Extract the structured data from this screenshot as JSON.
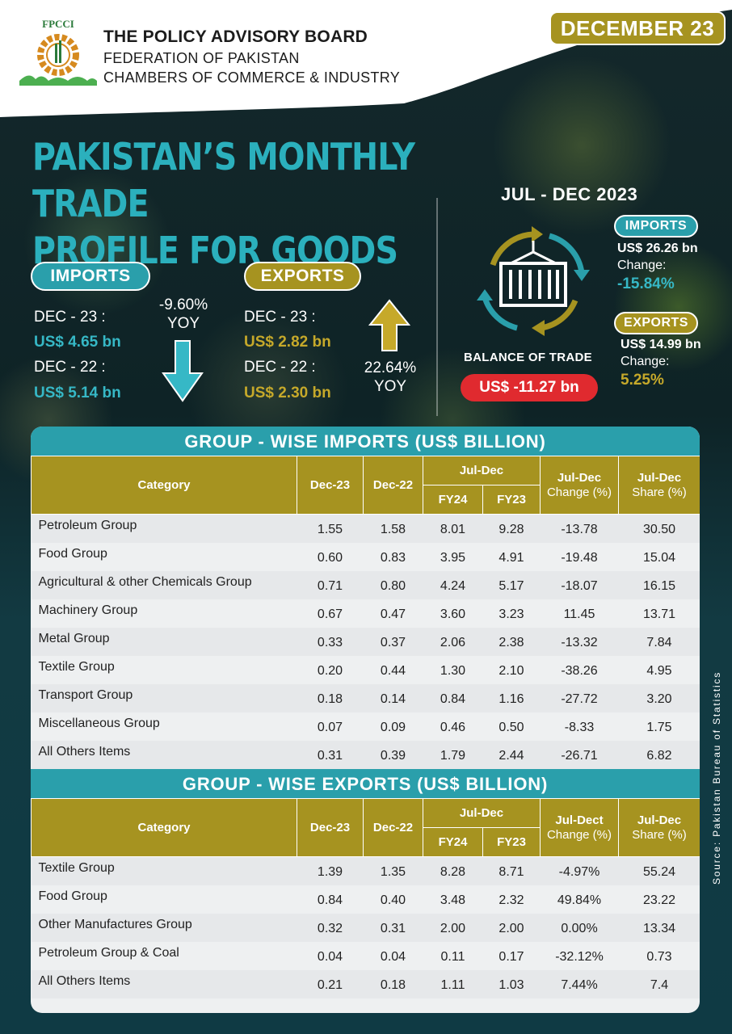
{
  "header": {
    "logo_text": "FPCCI",
    "title": "THE POLICY ADVISORY BOARD",
    "line1": "FEDERATION OF PAKISTAN",
    "line2": "CHAMBERS OF COMMERCE & INDUSTRY",
    "date_badge": "DECEMBER 23"
  },
  "main_title": {
    "line1": "PAKISTAN’S MONTHLY TRADE",
    "line2": "PROFILE FOR GOODS"
  },
  "imports_summary": {
    "label": "IMPORTS",
    "dec23_label": "DEC - 23 :",
    "dec23_value": "US$ 4.65 bn",
    "dec22_label": "DEC - 22 :",
    "dec22_value": "US$ 5.14 bn",
    "yoy_pct": "-9.60%",
    "yoy_label": "YOY",
    "trend": "down"
  },
  "exports_summary": {
    "label": "EXPORTS",
    "dec23_label": "DEC - 23 :",
    "dec23_value": "US$ 2.82 bn",
    "dec22_label": "DEC - 22 :",
    "dec22_value": "US$ 2.30 bn",
    "yoy_pct": "22.64%",
    "yoy_label": "YOY",
    "trend": "up"
  },
  "period_summary": {
    "period": "JUL - DEC  2023",
    "imports_label": "IMPORTS",
    "imports_value": "US$ 26.26 bn",
    "imports_change_label": "Change:",
    "imports_change": "-15.84%",
    "exports_label": "EXPORTS",
    "exports_value": "US$ 14.99 bn",
    "exports_change_label": "Change:",
    "exports_change": "5.25%",
    "balance_label": "BALANCE OF TRADE",
    "balance_value": "US$ -11.27 bn",
    "icon": "cargo-container-icon"
  },
  "imports_table": {
    "title": "GROUP - WISE IMPORTS (US$ BILLION)",
    "headers": {
      "category": "Category",
      "dec23": "Dec-23",
      "dec22": "Dec-22",
      "juldec": "Jul-Dec",
      "fy24": "FY24",
      "fy23": "FY23",
      "change_l1": "Jul-Dec",
      "change_l2": "Change (%)",
      "share_l1": "Jul-Dec",
      "share_l2": "Share (%)"
    },
    "rows": [
      [
        "Petroleum Group",
        "1.55",
        "1.58",
        "8.01",
        "9.28",
        "-13.78",
        "30.50"
      ],
      [
        "Food Group",
        "0.60",
        "0.83",
        "3.95",
        "4.91",
        "-19.48",
        "15.04"
      ],
      [
        "Agricultural & other Chemicals Group",
        "0.71",
        "0.80",
        "4.24",
        "5.17",
        "-18.07",
        "16.15"
      ],
      [
        "Machinery Group",
        "0.67",
        "0.47",
        "3.60",
        "3.23",
        "11.45",
        "13.71"
      ],
      [
        "Metal Group",
        "0.33",
        "0.37",
        "2.06",
        "2.38",
        "-13.32",
        "7.84"
      ],
      [
        "Textile Group",
        "0.20",
        "0.44",
        "1.30",
        "2.10",
        "-38.26",
        "4.95"
      ],
      [
        "Transport Group",
        "0.18",
        "0.14",
        "0.84",
        "1.16",
        "-27.72",
        "3.20"
      ],
      [
        "Miscellaneous Group",
        "0.07",
        "0.09",
        "0.46",
        "0.50",
        "-8.33",
        "1.75"
      ],
      [
        "All Others Items",
        "0.31",
        "0.39",
        "1.79",
        "2.44",
        "-26.71",
        "6.82"
      ]
    ]
  },
  "exports_table": {
    "title": "GROUP - WISE EXPORTS (US$ BILLION)",
    "headers": {
      "category": "Category",
      "dec23": "Dec-23",
      "dec22": "Dec-22",
      "juldec": "Jul-Dec",
      "fy24": "FY24",
      "fy23": "FY23",
      "change_l1": "Jul-Dect",
      "change_l2": "Change (%)",
      "share_l1": "Jul-Dec",
      "share_l2": "Share (%)"
    },
    "rows": [
      [
        "Textile Group",
        "1.39",
        "1.35",
        "8.28",
        "8.71",
        "-4.97%",
        "55.24"
      ],
      [
        "Food Group",
        "0.84",
        "0.40",
        "3.48",
        "2.32",
        "49.84%",
        "23.22"
      ],
      [
        "Other Manufactures Group",
        "0.32",
        "0.31",
        "2.00",
        "2.00",
        "0.00%",
        "13.34"
      ],
      [
        "Petroleum Group & Coal",
        "0.04",
        "0.04",
        "0.11",
        "0.17",
        "-32.12%",
        "0.73"
      ],
      [
        "All Others Items",
        "0.21",
        "0.18",
        "1.11",
        "1.03",
        "7.44%",
        "7.4"
      ]
    ]
  },
  "source": "Source: Pakistan Bureau of Statistics",
  "colors": {
    "teal": "#2a9fab",
    "gold": "#a69320",
    "red": "#e02a2f",
    "dark_bg": "#0f2a2e"
  }
}
